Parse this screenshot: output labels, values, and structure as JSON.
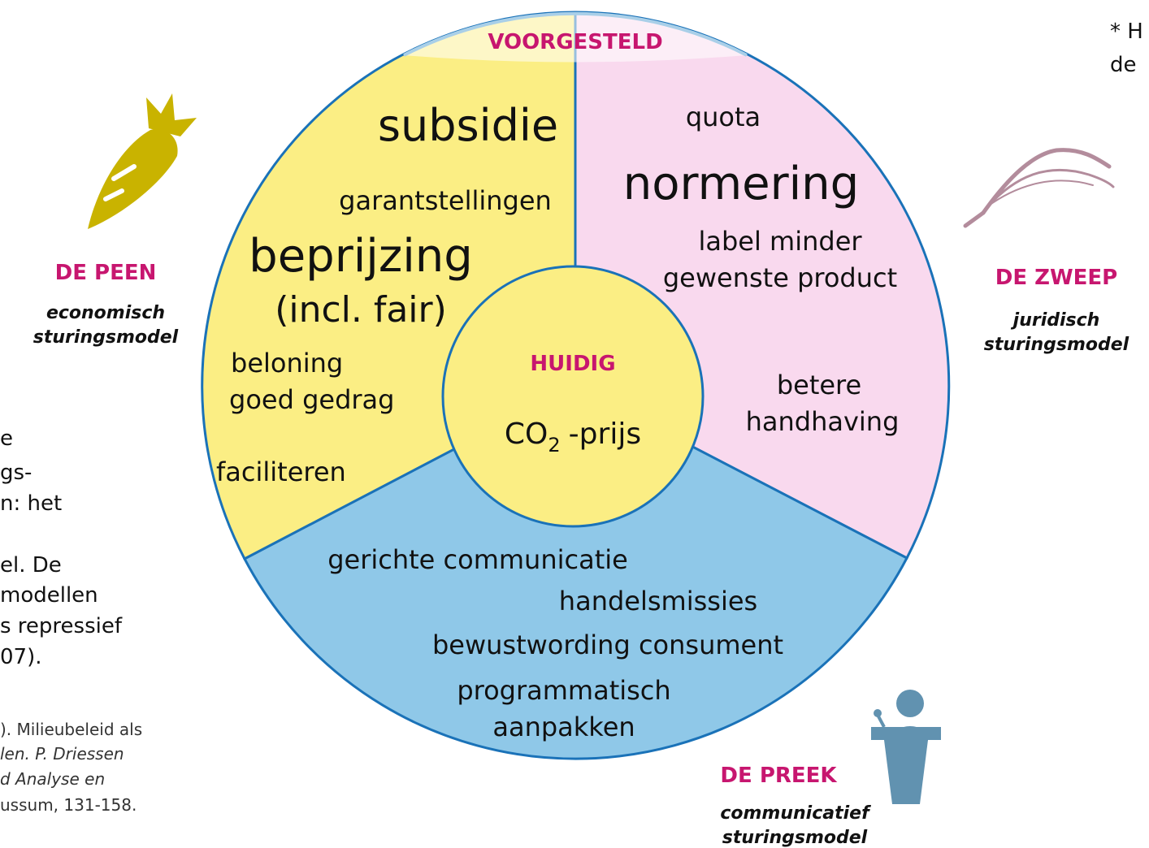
{
  "ring": {
    "top_label": "VOORGESTELD",
    "center_label": "HUIDIG",
    "center_item": {
      "base": "CO",
      "sub": "2",
      "rest": "-prijs"
    }
  },
  "left_sector": {
    "items": [
      "subsidie",
      "garantstellingen",
      "beprijzing",
      "(incl. fair)",
      "beloning",
      "goed gedrag",
      "faciliteren"
    ]
  },
  "right_sector": {
    "items": [
      "quota",
      "normering",
      "label minder",
      "gewenste product",
      "betere",
      "handhaving"
    ]
  },
  "bottom_sector": {
    "items": [
      "gerichte communicatie",
      "handelsmissies",
      "bewustwording consument",
      "programmatisch",
      "aanpakken"
    ]
  },
  "models": [
    {
      "title": "DE PEEN",
      "subtitle": [
        "economisch",
        "sturingsmodel"
      ]
    },
    {
      "title": "DE ZWEEP",
      "subtitle": [
        "juridisch",
        "sturingsmodel"
      ]
    },
    {
      "title": "DE PREEK",
      "subtitle": [
        "communicatief",
        "sturingsmodel"
      ]
    }
  ],
  "side_text": {
    "lines": [
      "e",
      "gs-",
      "n: het",
      "el.  De",
      "modellen",
      "s repressief",
      "07)."
    ],
    "reference": [
      "). Milieubeleid als",
      "len. P. Driessen",
      "d Analyse en",
      "ussum, 131-158."
    ]
  },
  "top_right_note": [
    "* H",
    "de"
  ]
}
